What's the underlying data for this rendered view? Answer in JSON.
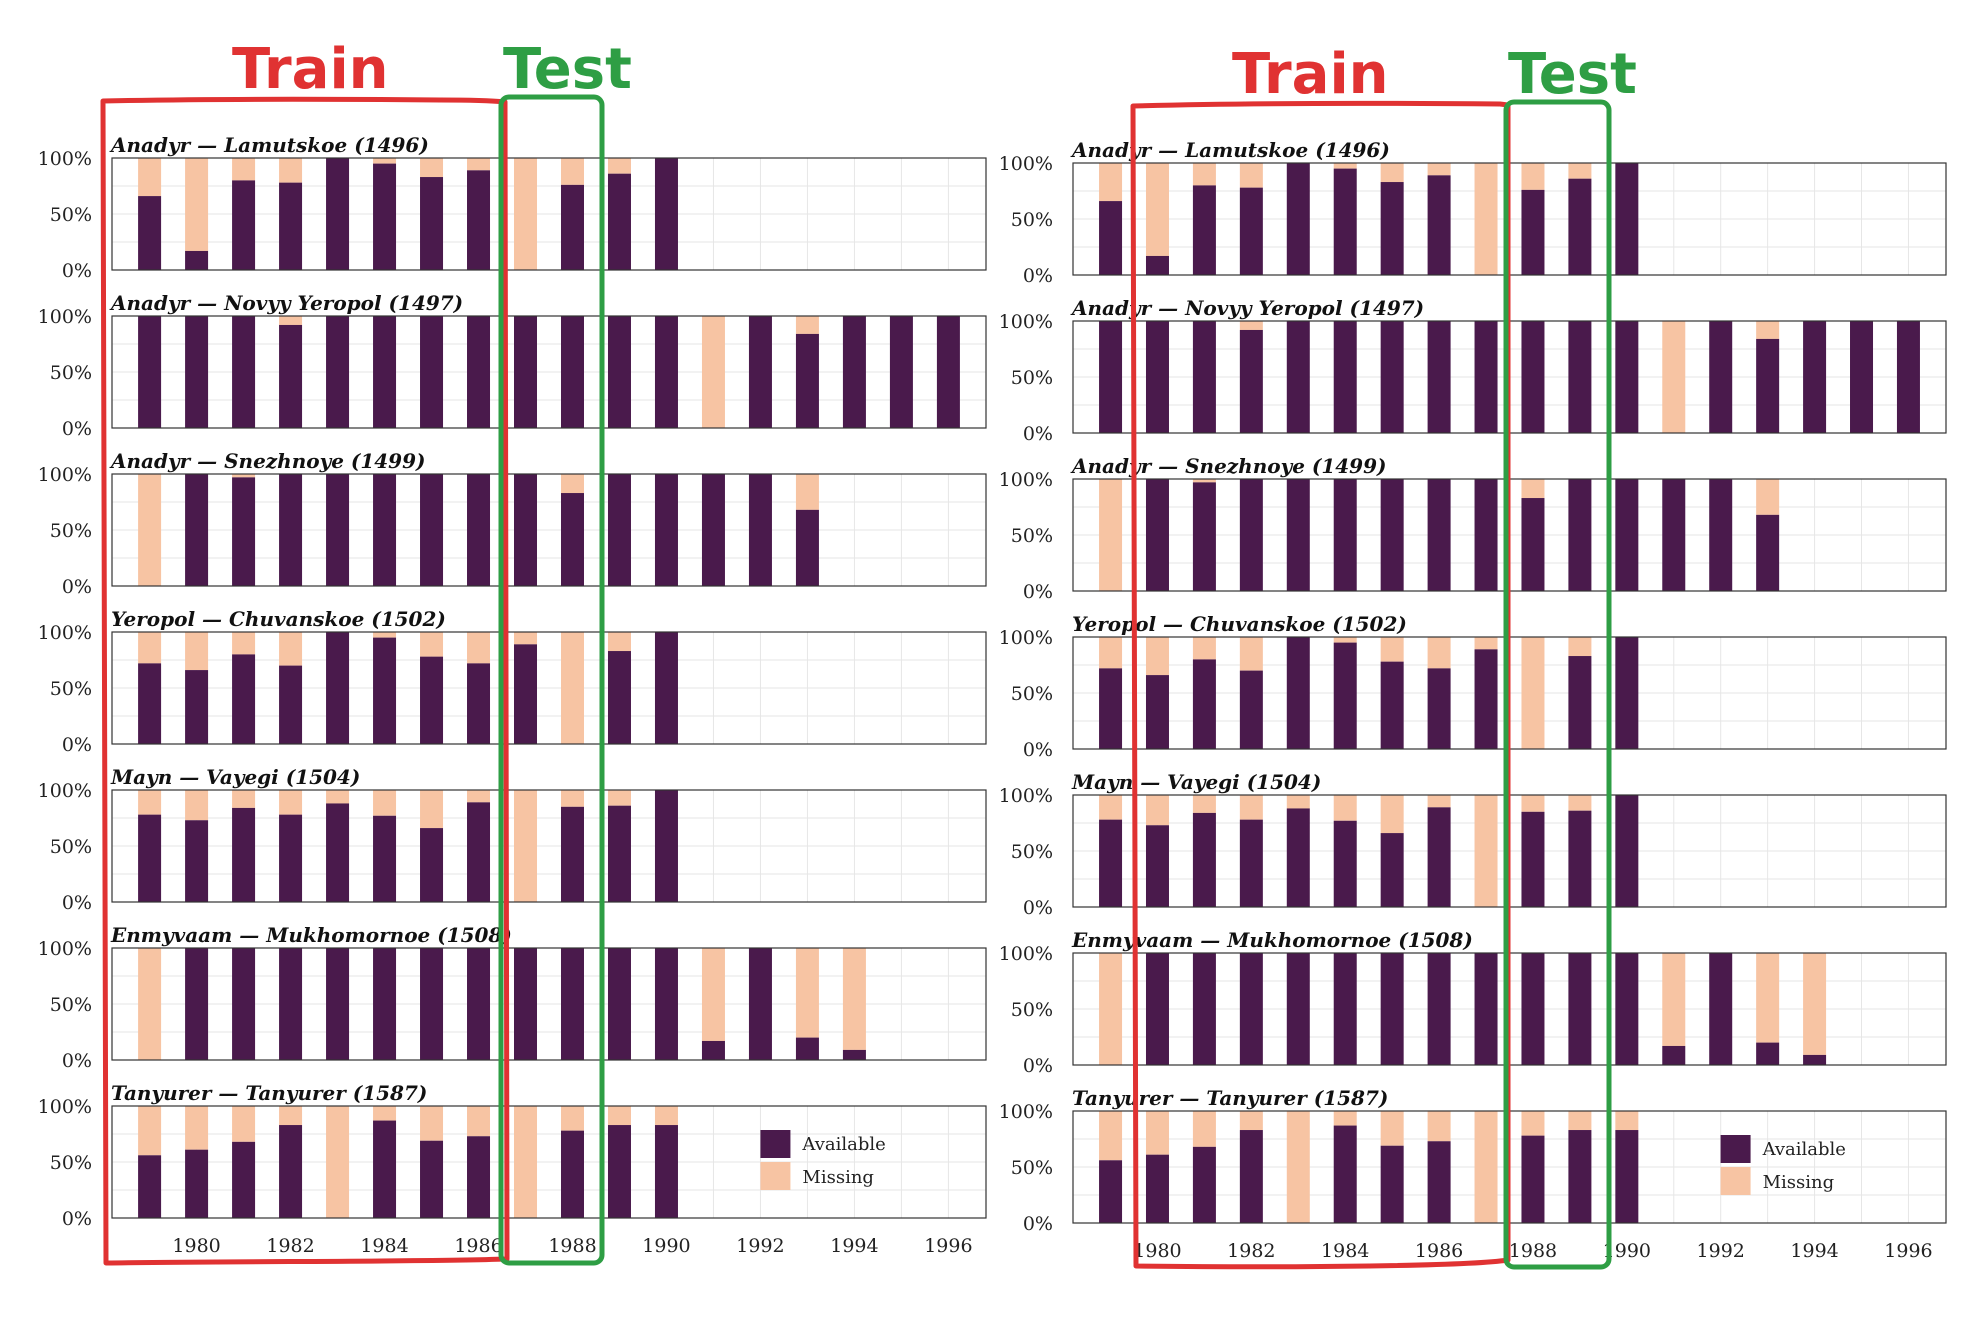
{
  "colors": {
    "available": "#4a1a4c",
    "missing": "#f7c4a3",
    "train": "#e03232",
    "test": "#2e9e44",
    "grid": "#e6e6e6",
    "frame": "#333333"
  },
  "annotations": {
    "train_label": "Train",
    "test_label": "Test",
    "left_figure": {
      "train_years": [
        1979,
        1986
      ],
      "test_years": [
        1987,
        1988
      ]
    },
    "right_figure": {
      "train_years": [
        1979,
        1987
      ],
      "test_years": [
        1988,
        1989
      ]
    }
  },
  "chart_data": [
    {
      "type": "bar",
      "stacked": true,
      "facets": 7,
      "x_ticks": [
        1980,
        1982,
        1984,
        1986,
        1988,
        1990,
        1992,
        1994,
        1996
      ],
      "x_tick_labels": [
        "1980",
        "1982",
        "1984",
        "1986",
        "1988",
        "1990",
        "1992",
        "1994",
        "1996"
      ],
      "xlim": [
        1978.2,
        1996.8
      ],
      "ylim": [
        0,
        1
      ],
      "y_tick_labels": [
        "0%",
        "50%",
        "100%"
      ],
      "grid": true,
      "legend": {
        "placement": "bottom-right of last panel",
        "entries": [
          "Available",
          "Missing"
        ]
      },
      "series_names": [
        "Available",
        "Missing"
      ],
      "panels": [
        {
          "title": "Anadyr — Lamutskoe (1496)",
          "years": [
            1979,
            1980,
            1981,
            1982,
            1983,
            1984,
            1985,
            1986,
            1987,
            1988,
            1989,
            1990
          ],
          "available": [
            0.66,
            0.17,
            0.8,
            0.78,
            1.0,
            0.95,
            0.83,
            0.89,
            0.0,
            0.76,
            0.86,
            1.0
          ]
        },
        {
          "title": "Anadyr — Novyy Yeropol (1497)",
          "years": [
            1979,
            1980,
            1981,
            1982,
            1983,
            1984,
            1985,
            1986,
            1987,
            1988,
            1989,
            1990,
            1991,
            1992,
            1993,
            1994,
            1995,
            1996
          ],
          "available": [
            1.0,
            1.0,
            1.0,
            0.92,
            1.0,
            1.0,
            1.0,
            1.0,
            1.0,
            1.0,
            1.0,
            1.0,
            0.0,
            1.0,
            0.84,
            1.0,
            1.0,
            1.0
          ]
        },
        {
          "title": "Anadyr — Snezhnoye (1499)",
          "years": [
            1979,
            1980,
            1981,
            1982,
            1983,
            1984,
            1985,
            1986,
            1987,
            1988,
            1989,
            1990,
            1991,
            1992,
            1993
          ],
          "available": [
            0.0,
            1.0,
            0.97,
            1.0,
            1.0,
            1.0,
            1.0,
            1.0,
            1.0,
            0.83,
            1.0,
            1.0,
            1.0,
            1.0,
            0.68
          ]
        },
        {
          "title": "Yeropol — Chuvanskoe (1502)",
          "years": [
            1979,
            1980,
            1981,
            1982,
            1983,
            1984,
            1985,
            1986,
            1987,
            1988,
            1989,
            1990
          ],
          "available": [
            0.72,
            0.66,
            0.8,
            0.7,
            1.0,
            0.95,
            0.78,
            0.72,
            0.89,
            0.0,
            0.83,
            1.0
          ]
        },
        {
          "title": "Mayn — Vayegi (1504)",
          "years": [
            1979,
            1980,
            1981,
            1982,
            1983,
            1984,
            1985,
            1986,
            1987,
            1988,
            1989,
            1990
          ],
          "available": [
            0.78,
            0.73,
            0.84,
            0.78,
            0.88,
            0.77,
            0.66,
            0.89,
            0.0,
            0.85,
            0.86,
            1.0
          ]
        },
        {
          "title": "Enmyvaam — Mukhomornoe (1508)",
          "years": [
            1979,
            1980,
            1981,
            1982,
            1983,
            1984,
            1985,
            1986,
            1987,
            1988,
            1989,
            1990,
            1991,
            1992,
            1993,
            1994
          ],
          "available": [
            0.0,
            1.0,
            1.0,
            1.0,
            1.0,
            1.0,
            1.0,
            1.0,
            1.0,
            1.0,
            1.0,
            1.0,
            0.17,
            1.0,
            0.2,
            0.09
          ]
        },
        {
          "title": "Tanyurer — Tanyurer (1587)",
          "years": [
            1979,
            1980,
            1981,
            1982,
            1983,
            1984,
            1985,
            1986,
            1987,
            1988,
            1989,
            1990
          ],
          "available": [
            0.56,
            0.61,
            0.68,
            0.83,
            0.0,
            0.87,
            0.69,
            0.73,
            0.0,
            0.78,
            0.83,
            0.83
          ]
        }
      ]
    },
    {
      "type": "bar",
      "stacked": true,
      "facets": 7,
      "note_same_data": true,
      "x_ticks": [
        1980,
        1982,
        1984,
        1986,
        1988,
        1990,
        1992,
        1994,
        1996
      ],
      "x_tick_labels": [
        "1980",
        "1982",
        "1984",
        "1986",
        "1988",
        "1990",
        "1992",
        "1994",
        "1996"
      ],
      "xlim": [
        1978.2,
        1996.8
      ],
      "ylim": [
        0,
        1
      ],
      "y_tick_labels": [
        "0%",
        "50%",
        "100%"
      ],
      "grid": true,
      "legend": {
        "placement": "bottom-right of last panel",
        "entries": [
          "Available",
          "Missing"
        ]
      }
    }
  ]
}
